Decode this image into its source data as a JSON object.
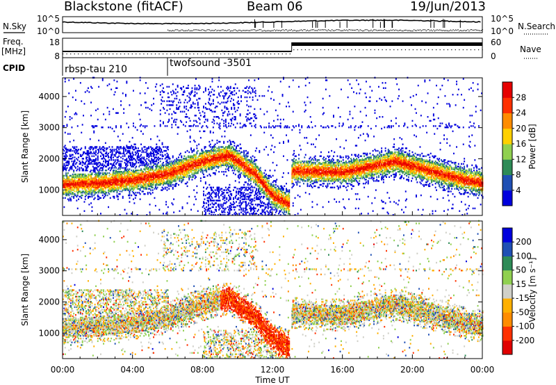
{
  "header": {
    "title": "Blackstone (fitACF)",
    "beam": "Beam 06",
    "date": "19/Jun/2013"
  },
  "labels": {
    "nsky": "N.Sky",
    "nsearch": "N.Search",
    "freq": "Freq.",
    "freq_unit": "[MHz]",
    "nave": "Nave",
    "cpid": "CPID",
    "time_axis": "Time UT"
  },
  "cpid_segments": [
    {
      "name": "rbsp-tau 210",
      "start": 0
    },
    {
      "name": "twofsound -3501",
      "start": 6
    }
  ],
  "noise_panel": {
    "left_ticks": [
      "10^5",
      "10^0"
    ],
    "right_ticks": [
      "10^5",
      "10^0"
    ]
  },
  "freq_panel": {
    "left_ticks": [
      "18",
      "8"
    ],
    "right_ticks": [
      "60",
      "0"
    ]
  },
  "colors": {
    "power_scale": [
      "#0000dd",
      "#1f4fb4",
      "#2e8b57",
      "#90d050",
      "#ffd000",
      "#ff8c00",
      "#ff3000",
      "#e60000"
    ],
    "velocity_scale": [
      "#e00000",
      "#ff3000",
      "#ff8c00",
      "#ffb000",
      "#d0d0c8",
      "#90d050",
      "#2e8b57",
      "#1f4fb4",
      "#0000dd"
    ]
  },
  "chart_data": [
    {
      "type": "heatmap",
      "title": "",
      "xlabel": "Time UT",
      "ylabel": "Slant Range [km]",
      "xlim": [
        0,
        24
      ],
      "ylim": [
        180,
        4600
      ],
      "x_ticks": [
        "00:00",
        "04:00",
        "08:00",
        "12:00",
        "16:00",
        "20:00",
        "00:00"
      ],
      "y_ticks": [
        1000,
        2000,
        3000,
        4000
      ],
      "colorbar": {
        "label": "Power [dB]",
        "ticks": [
          4,
          8,
          12,
          16,
          20,
          24,
          28
        ],
        "range": [
          0,
          32
        ]
      },
      "band_center_km": [
        [
          0,
          1150
        ],
        [
          2,
          1200
        ],
        [
          4,
          1300
        ],
        [
          6,
          1500
        ],
        [
          8,
          1900
        ],
        [
          9.5,
          2100
        ],
        [
          11,
          1500
        ],
        [
          12,
          800
        ],
        [
          13,
          500
        ],
        [
          13.1,
          1600
        ],
        [
          16,
          1550
        ],
        [
          19,
          1900
        ],
        [
          21,
          1600
        ],
        [
          23,
          1300
        ],
        [
          24,
          1200
        ]
      ]
    },
    {
      "type": "heatmap",
      "title": "",
      "xlabel": "Time UT",
      "ylabel": "Slant Range [km]",
      "xlim": [
        0,
        24
      ],
      "ylim": [
        180,
        4600
      ],
      "x_ticks": [
        "00:00",
        "04:00",
        "08:00",
        "12:00",
        "16:00",
        "20:00",
        "00:00"
      ],
      "y_ticks": [
        1000,
        2000,
        3000,
        4000
      ],
      "colorbar": {
        "label": "Velocity [m s⁻¹]",
        "ticks": [
          200,
          100,
          50,
          15,
          -15,
          -50,
          -100,
          -200
        ],
        "range": [
          -250,
          250
        ]
      },
      "band_center_km": [
        [
          0,
          1150
        ],
        [
          2,
          1200
        ],
        [
          4,
          1300
        ],
        [
          6,
          1500
        ],
        [
          8,
          1900
        ],
        [
          9.5,
          2100
        ],
        [
          11,
          1500
        ],
        [
          12,
          800
        ],
        [
          13,
          500
        ],
        [
          13.1,
          1600
        ],
        [
          16,
          1550
        ],
        [
          19,
          1900
        ],
        [
          21,
          1600
        ],
        [
          23,
          1300
        ],
        [
          24,
          1200
        ]
      ]
    }
  ]
}
